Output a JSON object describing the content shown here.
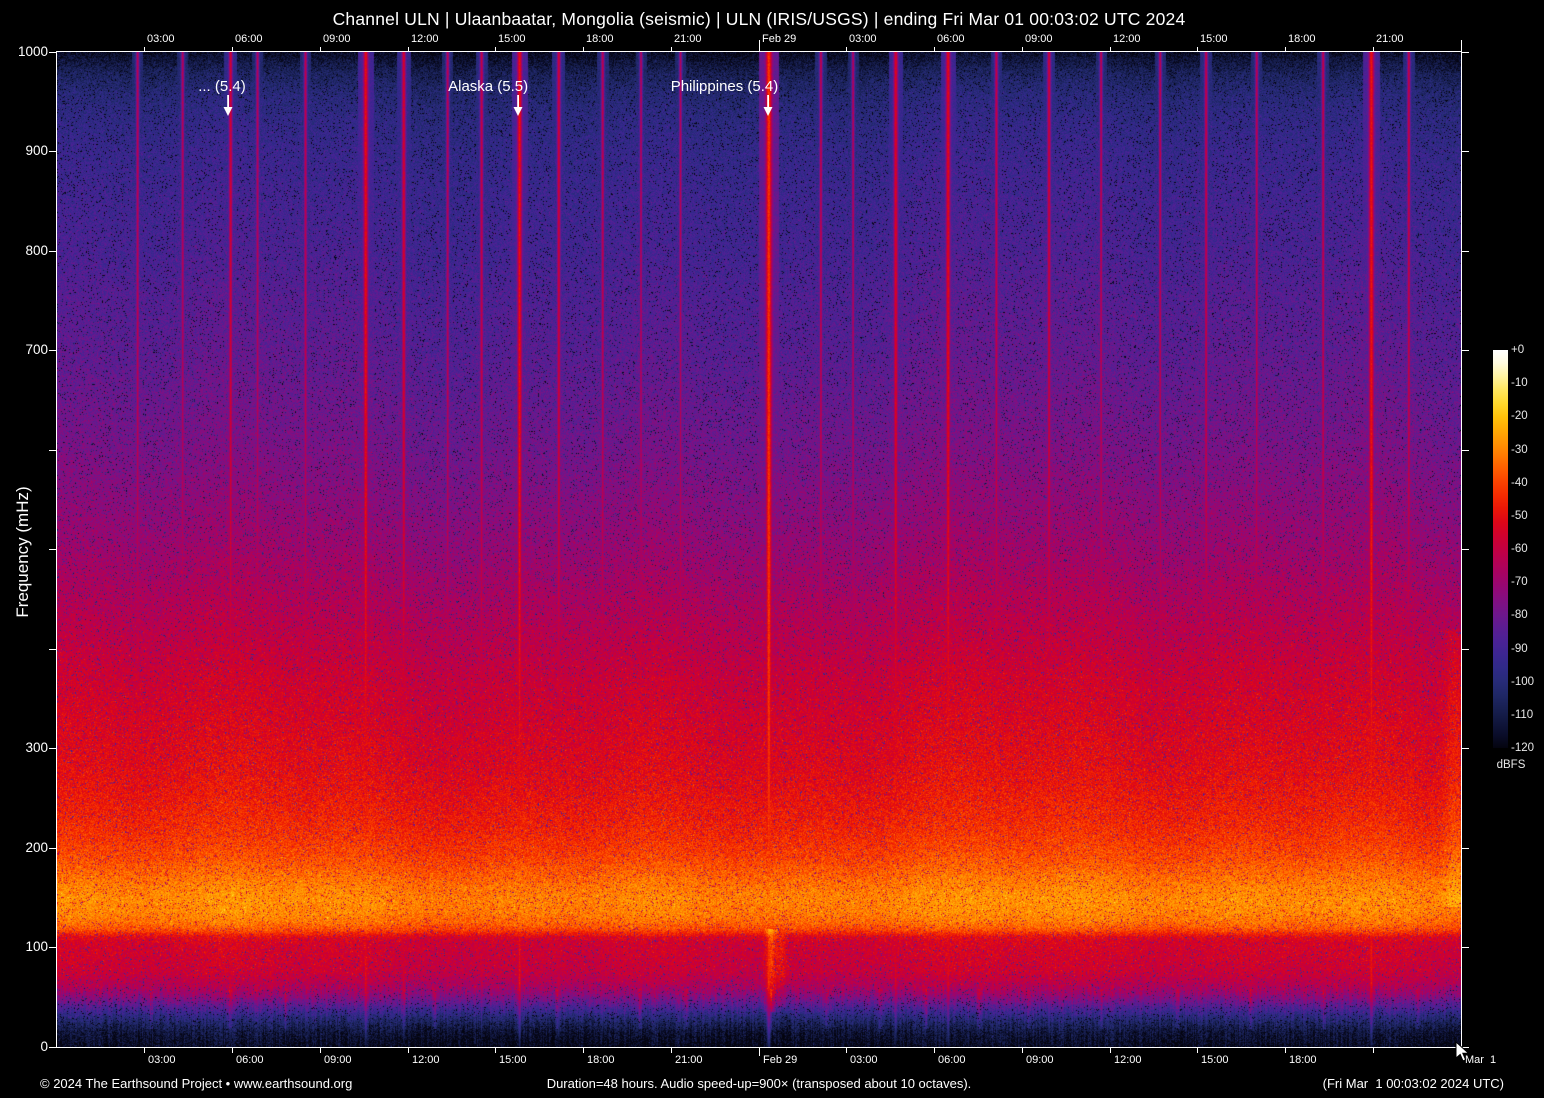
{
  "header": {
    "title": "Channel ULN | Ulaanbaatar, Mongolia (seismic) | ULN (IRIS/USGS) | ending Fri Mar 01 00:03:02 UTC 2024"
  },
  "footer": {
    "copyright": "© 2024 The Earthsound Project • www.earthsound.org",
    "duration_note": "Duration=48 hours. Audio speed-up=900× (transposed about 10 octaves).",
    "end_time": "(Fri Mar  1 00:03:02 2024 UTC)"
  },
  "chart_data": {
    "type": "heatmap",
    "title": "Channel ULN | Ulaanbaatar, Mongolia (seismic) | ULN (IRIS/USGS) | ending Fri Mar 01 00:03:02 UTC 2024",
    "ylabel": "Frequency (mHz)",
    "ylim": [
      0,
      1000
    ],
    "xlim_hours": [
      0,
      48
    ],
    "grid": false,
    "y_ticks": [
      {
        "v": 1000,
        "label": "1000"
      },
      {
        "v": 900,
        "label": "900"
      },
      {
        "v": 800,
        "label": "800"
      },
      {
        "v": 700,
        "label": "700"
      },
      {
        "v": 600,
        "label": ""
      },
      {
        "v": 500,
        "label": ""
      },
      {
        "v": 400,
        "label": ""
      },
      {
        "v": 300,
        "label": "300"
      },
      {
        "v": 200,
        "label": "200"
      },
      {
        "v": 100,
        "label": "100"
      },
      {
        "v": 0,
        "label": "0"
      }
    ],
    "x_axis": {
      "hours_total": 48,
      "top_ticks": [
        {
          "h": 3,
          "label": "03:00"
        },
        {
          "h": 6,
          "label": "06:00"
        },
        {
          "h": 9,
          "label": "09:00"
        },
        {
          "h": 12,
          "label": "12:00"
        },
        {
          "h": 15,
          "label": "15:00"
        },
        {
          "h": 18,
          "label": "18:00"
        },
        {
          "h": 21,
          "label": "21:00"
        },
        {
          "h": 24,
          "label": "Feb 29",
          "date": true
        },
        {
          "h": 27,
          "label": "03:00"
        },
        {
          "h": 30,
          "label": "06:00"
        },
        {
          "h": 33,
          "label": "09:00"
        },
        {
          "h": 36,
          "label": "12:00"
        },
        {
          "h": 39,
          "label": "15:00"
        },
        {
          "h": 42,
          "label": "18:00"
        },
        {
          "h": 45,
          "label": "21:00"
        },
        {
          "h": 48,
          "label": "",
          "date": true
        }
      ],
      "bottom_ticks": [
        {
          "h": 3,
          "label": "03:00"
        },
        {
          "h": 6,
          "label": "06:00"
        },
        {
          "h": 9,
          "label": "09:00"
        },
        {
          "h": 12,
          "label": "12:00"
        },
        {
          "h": 15,
          "label": "15:00"
        },
        {
          "h": 18,
          "label": "18:00"
        },
        {
          "h": 21,
          "label": "21:00"
        },
        {
          "h": 24,
          "label": "Feb 29",
          "date": true
        },
        {
          "h": 27,
          "label": "03:00"
        },
        {
          "h": 30,
          "label": "06:00"
        },
        {
          "h": 33,
          "label": "09:00"
        },
        {
          "h": 36,
          "label": "12:00"
        },
        {
          "h": 39,
          "label": "15:00"
        },
        {
          "h": 42,
          "label": "18:00"
        },
        {
          "h": 45,
          "label": ""
        },
        {
          "h": 48,
          "label": "Mar  1",
          "date": true
        }
      ]
    },
    "colorbar": {
      "unit": "dBFS",
      "range_db": [
        0,
        -120
      ],
      "ticks": [
        "+0",
        "-10",
        "-20",
        "-30",
        "-40",
        "-50",
        "-60",
        "-70",
        "-80",
        "-90",
        "-100",
        "-110",
        "-120"
      ],
      "stops": [
        {
          "db": -120,
          "color": "#04040f"
        },
        {
          "db": -116,
          "color": "#0a0d2a"
        },
        {
          "db": -112,
          "color": "#11173e"
        },
        {
          "db": -108,
          "color": "#182052"
        },
        {
          "db": -104,
          "color": "#1f2766"
        },
        {
          "db": -100,
          "color": "#272b78"
        },
        {
          "db": -96,
          "color": "#2f2a87"
        },
        {
          "db": -92,
          "color": "#3b2691"
        },
        {
          "db": -88,
          "color": "#4a2295"
        },
        {
          "db": -84,
          "color": "#5a1d92"
        },
        {
          "db": -80,
          "color": "#6d178c"
        },
        {
          "db": -76,
          "color": "#801082"
        },
        {
          "db": -72,
          "color": "#930875"
        },
        {
          "db": -68,
          "color": "#a40365"
        },
        {
          "db": -64,
          "color": "#b40154"
        },
        {
          "db": -60,
          "color": "#c30041"
        },
        {
          "db": -56,
          "color": "#d0012e"
        },
        {
          "db": -52,
          "color": "#dd0618"
        },
        {
          "db": -48,
          "color": "#ea1607"
        },
        {
          "db": -44,
          "color": "#f42a01"
        },
        {
          "db": -40,
          "color": "#fa4100"
        },
        {
          "db": -36,
          "color": "#fe5c00"
        },
        {
          "db": -32,
          "color": "#ff7801"
        },
        {
          "db": -28,
          "color": "#ff9303"
        },
        {
          "db": -24,
          "color": "#ffab04"
        },
        {
          "db": -20,
          "color": "#ffc30b"
        },
        {
          "db": -16,
          "color": "#ffd92e"
        },
        {
          "db": -12,
          "color": "#ffe75f"
        },
        {
          "db": -8,
          "color": "#fff3a0"
        },
        {
          "db": -4,
          "color": "#fffbdf"
        },
        {
          "db": 0,
          "color": "#ffffff"
        }
      ]
    },
    "annotations": [
      {
        "label": "... (5.4)",
        "text_h": 5.64,
        "arrow_h": 5.85
      },
      {
        "label": "Alaska (5.5)",
        "text_h": 14.74,
        "arrow_h": 15.77
      },
      {
        "label": "Philippines (5.4)",
        "text_h": 22.82,
        "arrow_h": 24.32
      }
    ],
    "noise_profile_freq_db": [
      [
        1000,
        -117
      ],
      [
        992,
        -113
      ],
      [
        980,
        -107
      ],
      [
        960,
        -101
      ],
      [
        935,
        -97
      ],
      [
        900,
        -94
      ],
      [
        850,
        -91
      ],
      [
        800,
        -89
      ],
      [
        750,
        -86
      ],
      [
        700,
        -84
      ],
      [
        650,
        -81
      ],
      [
        600,
        -78
      ],
      [
        550,
        -74
      ],
      [
        500,
        -70
      ],
      [
        460,
        -66
      ],
      [
        430,
        -63
      ],
      [
        400,
        -60
      ],
      [
        370,
        -57
      ],
      [
        340,
        -55
      ],
      [
        310,
        -53
      ],
      [
        280,
        -51
      ],
      [
        250,
        -48
      ],
      [
        225,
        -45
      ],
      [
        205,
        -42
      ],
      [
        190,
        -39
      ],
      [
        175,
        -35
      ],
      [
        160,
        -31
      ],
      [
        148,
        -29
      ],
      [
        135,
        -30
      ],
      [
        125,
        -33
      ],
      [
        118,
        -38
      ],
      [
        113,
        -46
      ],
      [
        110,
        -52
      ],
      [
        105,
        -55
      ],
      [
        95,
        -56
      ],
      [
        85,
        -57
      ],
      [
        75,
        -58
      ],
      [
        68,
        -61
      ],
      [
        60,
        -65
      ],
      [
        52,
        -72
      ],
      [
        45,
        -80
      ],
      [
        38,
        -89
      ],
      [
        30,
        -99
      ],
      [
        22,
        -107
      ],
      [
        14,
        -113
      ],
      [
        0,
        -118
      ]
    ],
    "events": [
      {
        "h": 2.74,
        "L": -62,
        "w": 1.6
      },
      {
        "h": 4.28,
        "L": -63,
        "w": 1.6
      },
      {
        "h": 5.92,
        "L": -56,
        "w": 1.8
      },
      {
        "h": 6.84,
        "L": -63,
        "w": 1.6
      },
      {
        "h": 8.48,
        "L": -61,
        "w": 1.6
      },
      {
        "h": 10.54,
        "L": -50,
        "w": 2.3
      },
      {
        "h": 11.84,
        "L": -55,
        "w": 1.9
      },
      {
        "h": 13.34,
        "L": -62,
        "w": 1.6
      },
      {
        "h": 14.5,
        "L": -59,
        "w": 1.7
      },
      {
        "h": 15.8,
        "L": -49,
        "w": 2.3
      },
      {
        "h": 17.14,
        "L": -57,
        "w": 1.8
      },
      {
        "h": 18.64,
        "L": -61,
        "w": 1.6
      },
      {
        "h": 19.95,
        "L": -63,
        "w": 1.5
      },
      {
        "h": 21.3,
        "L": -63,
        "w": 1.5
      },
      {
        "h": 24.32,
        "L": -42,
        "w": 2.9
      },
      {
        "h": 26.1,
        "L": -61,
        "w": 1.6
      },
      {
        "h": 27.2,
        "L": -63,
        "w": 1.5
      },
      {
        "h": 28.66,
        "L": -53,
        "w": 2.1
      },
      {
        "h": 30.45,
        "L": -51,
        "w": 2.2
      },
      {
        "h": 32.1,
        "L": -59,
        "w": 1.6
      },
      {
        "h": 33.9,
        "L": -57,
        "w": 1.8
      },
      {
        "h": 35.68,
        "L": -61,
        "w": 1.5
      },
      {
        "h": 37.7,
        "L": -61,
        "w": 1.5
      },
      {
        "h": 39.27,
        "L": -59,
        "w": 1.6
      },
      {
        "h": 41.0,
        "L": -61,
        "w": 1.5
      },
      {
        "h": 43.27,
        "L": -60,
        "w": 1.6
      },
      {
        "h": 44.92,
        "L": -48,
        "w": 2.5
      },
      {
        "h": 46.2,
        "L": -59,
        "w": 1.6
      }
    ],
    "extra_patches": [
      {
        "h": 24.4,
        "b": 17,
        "w": 5,
        "fmin": 35,
        "fmax": 118
      },
      {
        "h": 24.75,
        "b": 9,
        "w": 5,
        "fmin": 40,
        "fmax": 112
      },
      {
        "h": 47.8,
        "b": 7,
        "w": 12,
        "fmin": 140,
        "fmax": 420
      }
    ],
    "bottom_spikes": {
      "hours": [
        3.2,
        5.9,
        7.8,
        10.54,
        11.84,
        12.9,
        15.8,
        17.1,
        19.9,
        21.5,
        24.39,
        26.3,
        28.15,
        29.7,
        31.5,
        33.2,
        35.7,
        38.3,
        40.8,
        43.3,
        44.92,
        46.5
      ],
      "boost": 11,
      "width": 1.8,
      "fmin": 18,
      "fmax": 58
    }
  }
}
